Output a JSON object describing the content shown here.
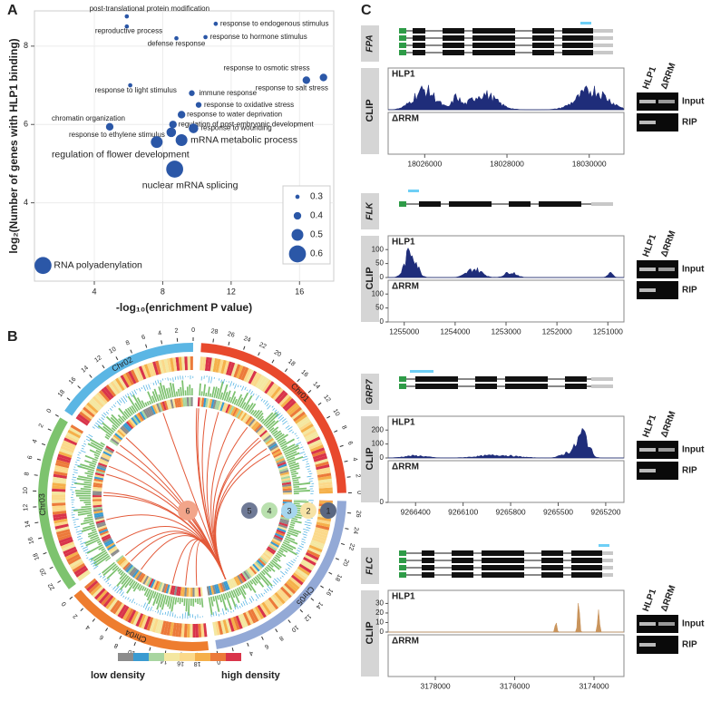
{
  "panel_labels": [
    "A",
    "B",
    "C"
  ],
  "chart_data": {
    "type": "scatter",
    "xlabel": "-log₁₀(enrichment P value)",
    "ylabel": "log₂(Number of genes with HLP1 binding)",
    "xlim": [
      0.5,
      18
    ],
    "ylim": [
      2,
      8.9
    ],
    "xticks": [
      4,
      8,
      12,
      16
    ],
    "yticks": [
      4,
      6,
      8
    ],
    "grid": true,
    "color": "#2b57a7",
    "labels": [
      "post-translational protein modification",
      "reproductive process",
      "response to endogenous stimulus",
      "response to hormone stimulus",
      "defense response",
      "response to osmotic stress",
      "response to salt stress",
      "response to light stimulus",
      "immune response",
      "response to oxidative stress",
      "response to water deprivation",
      "regulation of post-embryonic development",
      "chromatin organization",
      "response to ethylene stimulus",
      "response to wounding",
      "mRNA metabolic process",
      "regulation of flower development",
      "nuclear mRNA splicing",
      "RNA polyadenylation"
    ],
    "x": [
      5.9,
      5.9,
      11.1,
      10.5,
      8.8,
      17.4,
      16.4,
      6.1,
      9.7,
      10.1,
      9.1,
      8.6,
      4.9,
      8.5,
      9.8,
      9.1,
      7.65,
      8.7,
      1.0
    ],
    "y": [
      8.76,
      8.5,
      8.57,
      8.23,
      8.2,
      7.2,
      7.13,
      7.0,
      6.8,
      6.5,
      6.25,
      6.0,
      5.94,
      5.8,
      5.9,
      5.6,
      5.55,
      4.86,
      2.4
    ],
    "sizes": [
      0.3,
      0.3,
      0.3,
      0.3,
      0.3,
      0.4,
      0.4,
      0.3,
      0.35,
      0.35,
      0.4,
      0.4,
      0.4,
      0.45,
      0.45,
      0.5,
      0.5,
      0.6,
      0.6
    ],
    "size_legend": [
      0.3,
      0.4,
      0.5,
      0.6
    ]
  },
  "panel_b": {
    "chromosomes": [
      {
        "name": "Chr01",
        "color": "#e8492d",
        "ticks": [
          0,
          2,
          4,
          6,
          8,
          10,
          12,
          14,
          16,
          18,
          20,
          22,
          24,
          26,
          28
        ]
      },
      {
        "name": "Chr02",
        "color": "#5bb6e4",
        "ticks": [
          0,
          2,
          4,
          6,
          8,
          10,
          12,
          14,
          16,
          18
        ]
      },
      {
        "name": "Chr03",
        "color": "#7dc36e",
        "ticks": [
          0,
          2,
          4,
          6,
          8,
          10,
          12,
          14,
          16,
          18,
          20,
          22
        ]
      },
      {
        "name": "Chr04",
        "color": "#ee7d2f",
        "ticks": [
          0,
          2,
          4,
          6,
          8,
          10,
          12,
          14,
          16,
          18
        ]
      },
      {
        "name": "Chr05",
        "color": "#93a9d6",
        "ticks": [
          0,
          2,
          4,
          6,
          8,
          10,
          12,
          14,
          16,
          18,
          20,
          22,
          24,
          26
        ]
      }
    ],
    "rings": [
      "1",
      "2",
      "3",
      "4",
      "5",
      "6"
    ],
    "legend": {
      "low": "low density",
      "high": "high density"
    }
  },
  "panel_c": {
    "clip": "CLIP",
    "gel_lanes": [
      "HLP1",
      "ΔRRM"
    ],
    "gel_rows": [
      "Input",
      "RIP"
    ],
    "genes": [
      {
        "name": "FPA",
        "xlim": [
          18025111,
          18030844
        ],
        "xticks": [
          18026000,
          18028000,
          18030000
        ],
        "tracks": [
          {
            "name": "HLP1",
            "ylim": [
              0,
              100
            ],
            "yticks": []
          },
          {
            "name": "ΔRRM",
            "ylim": [
              0,
              100
            ],
            "yticks": []
          }
        ]
      },
      {
        "name": "FLK",
        "xlim": [
          1255316,
          1250684
        ],
        "xticks": [
          1255000,
          1254000,
          1253000,
          1252000,
          1251000
        ],
        "tracks": [
          {
            "name": "HLP1",
            "ylim": [
              0,
              130
            ],
            "yticks": [
              0,
              50,
              100
            ]
          },
          {
            "name": "ΔRRM",
            "ylim": [
              0,
              130
            ],
            "yticks": [
              0,
              50,
              100
            ]
          }
        ]
      },
      {
        "name": "GRP7",
        "xlim": [
          9266573,
          9265085
        ],
        "xticks": [
          9266400,
          9266100,
          9265800,
          9265500,
          9265200
        ],
        "tracks": [
          {
            "name": "HLP1",
            "ylim": [
              0,
              260
            ],
            "yticks": [
              0,
              100,
              200
            ]
          },
          {
            "name": "ΔRRM",
            "ylim": [
              0,
              260
            ],
            "yticks": [
              0
            ]
          }
        ]
      },
      {
        "name": "FLC",
        "xlim": [
          3179189,
          3173246
        ],
        "xticks": [
          3178000,
          3176000,
          3174000
        ],
        "tracks": [
          {
            "name": "HLP1",
            "ylim": [
              0,
              38
            ],
            "yticks": [
              0,
              10,
              20,
              30
            ]
          },
          {
            "name": "ΔRRM",
            "ylim": [
              0,
              38
            ],
            "yticks": []
          }
        ]
      }
    ]
  }
}
